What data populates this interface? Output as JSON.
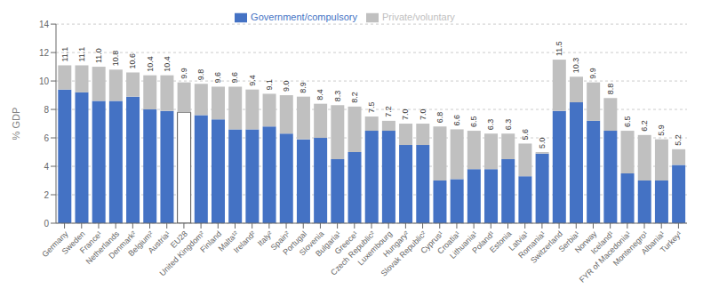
{
  "chart_data": {
    "type": "bar",
    "stacked": true,
    "grid": true,
    "legend": "top",
    "data_labels": true,
    "ylabel": "% GDP",
    "categories": [
      "Germany",
      "Sweden",
      "France¹",
      "Netherlands",
      "Denmark²",
      "Belgium²",
      "Austria¹",
      "EU28",
      "United Kingdom²",
      "Finland",
      "Malta¹²",
      "Ireland²",
      "Italy²",
      "Spain²",
      "Portugal",
      "Slovenia",
      "Bulgaria¹",
      "Greece¹",
      "Czech Republic²",
      "Luxembourg",
      "Hungary²",
      "Slovak Republic²",
      "Cyprus¹",
      "Croatia¹",
      "Lithuania¹",
      "Poland¹",
      "Estonia",
      "Latvia¹",
      "Romania¹",
      "Switzerland",
      "Serbia¹",
      "Norway",
      "Iceland¹",
      "FYR of Macedonia¹",
      "Montenegro¹",
      "Albania¹",
      "Turkey¹"
    ],
    "series": [
      {
        "name": "Government/compulsory",
        "color": "#4472c4",
        "colors": [
          "#4472c4",
          "#4472c4",
          "#4472c4",
          "#4472c4",
          "#4472c4",
          "#4472c4",
          "#4472c4",
          "#ffffff",
          "#4472c4",
          "#4472c4",
          "#4472c4",
          "#4472c4",
          "#4472c4",
          "#4472c4",
          "#4472c4",
          "#4472c4",
          "#4472c4",
          "#4472c4",
          "#4472c4",
          "#4472c4",
          "#4472c4",
          "#4472c4",
          "#4472c4",
          "#4472c4",
          "#4472c4",
          "#4472c4",
          "#4472c4",
          "#4472c4",
          "#4472c4",
          "#4472c4",
          "#4472c4",
          "#4472c4",
          "#4472c4",
          "#4472c4",
          "#4472c4",
          "#4472c4",
          "#4472c4"
        ],
        "values": [
          9.4,
          9.2,
          8.6,
          8.6,
          8.9,
          8.0,
          7.9,
          7.8,
          7.6,
          7.3,
          6.6,
          6.6,
          6.8,
          6.3,
          5.9,
          6.0,
          4.5,
          5.0,
          6.5,
          6.5,
          5.5,
          5.5,
          3.0,
          3.1,
          3.8,
          3.8,
          4.5,
          3.3,
          4.9,
          7.9,
          8.5,
          7.2,
          6.5,
          3.5,
          3.0,
          3.0,
          4.1
        ]
      },
      {
        "name": "Private/voluntary",
        "color": "#c0c0c0",
        "values": [
          1.7,
          1.9,
          2.4,
          2.2,
          1.7,
          2.4,
          2.5,
          2.1,
          2.2,
          2.3,
          3.0,
          2.8,
          2.3,
          2.7,
          3.0,
          2.4,
          3.8,
          3.2,
          1.0,
          0.7,
          1.5,
          1.5,
          3.8,
          3.5,
          2.7,
          2.5,
          1.8,
          2.3,
          0.1,
          3.6,
          1.8,
          2.7,
          2.3,
          3.0,
          3.2,
          2.9,
          1.1
        ]
      }
    ],
    "totals": [
      11.1,
      11.1,
      11.0,
      10.8,
      10.6,
      10.4,
      10.4,
      9.9,
      9.8,
      9.6,
      9.6,
      9.4,
      9.1,
      9.0,
      8.9,
      8.4,
      8.3,
      8.2,
      7.5,
      7.2,
      7.0,
      7.0,
      6.8,
      6.6,
      6.5,
      6.3,
      6.3,
      5.6,
      5.0,
      11.5,
      10.3,
      9.9,
      8.8,
      6.5,
      6.2,
      5.9,
      5.2
    ],
    "total_labels": [
      "11.1",
      "11.1",
      "11.0",
      "10.8",
      "10.6",
      "10.4",
      "10.4",
      "9.9",
      "9.8",
      "9.6",
      "9.6",
      "9.4",
      "9.1",
      "9.0",
      "8.9",
      "8.4",
      "8.3",
      "8.2",
      "7.5",
      "7.2",
      "7.0",
      "7.0",
      "6.8",
      "6.6",
      "6.5",
      "6.3",
      "6.3",
      "5.6",
      "5.0",
      "11.5",
      "10.3",
      "9.9",
      "8.8",
      "6.5",
      "6.2",
      "5.9",
      "5.2"
    ],
    "ylim": [
      0,
      14
    ],
    "yticks": [
      0,
      2,
      4,
      6,
      8,
      10,
      12,
      14
    ]
  }
}
